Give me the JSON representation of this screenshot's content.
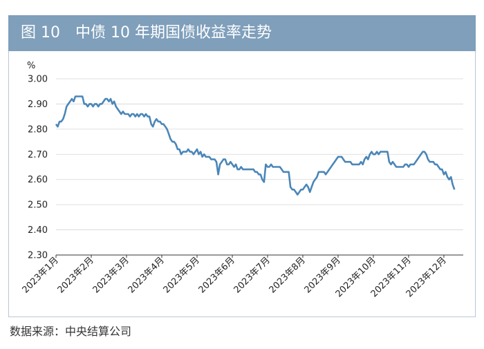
{
  "header": {
    "title": "图 10　中债 10 年期国债收益率走势",
    "background_color": "#7f9fbb"
  },
  "source": "数据来源：中央结算公司",
  "chart_data": {
    "type": "line",
    "title": "图 10　中债 10 年期国债收益率走势",
    "ylabel": "%",
    "ylim": [
      2.3,
      3.0
    ],
    "yticks": [
      "3.00",
      "2.90",
      "2.80",
      "2.70",
      "2.60",
      "2.50",
      "2.40",
      "2.30"
    ],
    "grid": true,
    "line_color": "#4a86b8",
    "xlabels": [
      "2023年1月",
      "2023年2月",
      "2023年3月",
      "2023年4月",
      "2023年5月",
      "2023年6月",
      "2023年7月",
      "2023年8月",
      "2023年9月",
      "2023年10月",
      "2023年11月",
      "2023年12月"
    ],
    "series": [
      {
        "name": "",
        "x": [
          0,
          0.05,
          0.1,
          0.15,
          0.2,
          0.25,
          0.3,
          0.35,
          0.4,
          0.45,
          0.5,
          0.55,
          0.6,
          0.65,
          0.7,
          0.75,
          0.8,
          0.85,
          0.9,
          0.95,
          1.0,
          1.05,
          1.1,
          1.15,
          1.2,
          1.25,
          1.3,
          1.35,
          1.4,
          1.45,
          1.5,
          1.55,
          1.6,
          1.65,
          1.7,
          1.75,
          1.8,
          1.85,
          1.9,
          1.95,
          2.0,
          2.05,
          2.1,
          2.15,
          2.2,
          2.25,
          2.3,
          2.35,
          2.4,
          2.45,
          2.5,
          2.55,
          2.6,
          2.65,
          2.7,
          2.75,
          2.8,
          2.85,
          2.9,
          2.95,
          3.0,
          3.05,
          3.1,
          3.15,
          3.2,
          3.25,
          3.3,
          3.35,
          3.4,
          3.45,
          3.5,
          3.55,
          3.6,
          3.65,
          3.7,
          3.75,
          3.8,
          3.85,
          3.9,
          3.95,
          4.0,
          4.05,
          4.1,
          4.15,
          4.2,
          4.25,
          4.3,
          4.35,
          4.4,
          4.45,
          4.5,
          4.55,
          4.6,
          4.65,
          4.7,
          4.75,
          4.8,
          4.85,
          4.9,
          4.95,
          5.0,
          5.05,
          5.1,
          5.15,
          5.2,
          5.25,
          5.3,
          5.35,
          5.4,
          5.45,
          5.5,
          5.55,
          5.6,
          5.65,
          5.7,
          5.75,
          5.8,
          5.85,
          5.9,
          5.95,
          6.0,
          6.05,
          6.1,
          6.15,
          6.2,
          6.25,
          6.3,
          6.35,
          6.4,
          6.45,
          6.5,
          6.55,
          6.6,
          6.65,
          6.7,
          6.75,
          6.8,
          6.85,
          6.9,
          6.95,
          7.0,
          7.05,
          7.1,
          7.15,
          7.2,
          7.25,
          7.3,
          7.35,
          7.4,
          7.45,
          7.5,
          7.55,
          7.6,
          7.65,
          7.7,
          7.75,
          7.8,
          7.85,
          7.9,
          7.95,
          8.0,
          8.05,
          8.1,
          8.15,
          8.2,
          8.25,
          8.3,
          8.35,
          8.4,
          8.45,
          8.5,
          8.55,
          8.6,
          8.65,
          8.7,
          8.75,
          8.8,
          8.85,
          8.9,
          8.95,
          9.0,
          9.05,
          9.1,
          9.15,
          9.2,
          9.25,
          9.3,
          9.35,
          9.4,
          9.45,
          9.5,
          9.55,
          9.6,
          9.65,
          9.7,
          9.75,
          9.8,
          9.85,
          9.9,
          9.95,
          10.0,
          10.05,
          10.1,
          10.15,
          10.2,
          10.25,
          10.3,
          10.35,
          10.4,
          10.45,
          10.5,
          10.55,
          10.6,
          10.65,
          10.7,
          10.75,
          10.8,
          10.85,
          10.9,
          10.95,
          11.0,
          11.05,
          11.1,
          11.15,
          11.2,
          11.25,
          11.3
        ],
        "y": [
          2.82,
          2.81,
          2.83,
          2.83,
          2.84,
          2.86,
          2.89,
          2.9,
          2.91,
          2.92,
          2.91,
          2.93,
          2.93,
          2.93,
          2.93,
          2.93,
          2.9,
          2.9,
          2.89,
          2.9,
          2.9,
          2.89,
          2.9,
          2.9,
          2.89,
          2.9,
          2.9,
          2.91,
          2.92,
          2.92,
          2.91,
          2.92,
          2.9,
          2.91,
          2.89,
          2.88,
          2.87,
          2.86,
          2.87,
          2.86,
          2.86,
          2.86,
          2.85,
          2.86,
          2.86,
          2.85,
          2.86,
          2.85,
          2.86,
          2.86,
          2.85,
          2.86,
          2.85,
          2.85,
          2.82,
          2.81,
          2.83,
          2.84,
          2.83,
          2.83,
          2.82,
          2.82,
          2.81,
          2.8,
          2.78,
          2.76,
          2.75,
          2.75,
          2.74,
          2.72,
          2.72,
          2.7,
          2.71,
          2.71,
          2.71,
          2.72,
          2.71,
          2.71,
          2.7,
          2.71,
          2.72,
          2.7,
          2.71,
          2.69,
          2.7,
          2.69,
          2.69,
          2.69,
          2.68,
          2.68,
          2.68,
          2.67,
          2.62,
          2.66,
          2.67,
          2.68,
          2.68,
          2.66,
          2.66,
          2.67,
          2.66,
          2.65,
          2.66,
          2.64,
          2.64,
          2.65,
          2.64,
          2.64,
          2.64,
          2.64,
          2.64,
          2.64,
          2.64,
          2.63,
          2.63,
          2.62,
          2.62,
          2.6,
          2.59,
          2.66,
          2.65,
          2.65,
          2.66,
          2.65,
          2.65,
          2.65,
          2.65,
          2.65,
          2.64,
          2.63,
          2.63,
          2.63,
          2.63,
          2.57,
          2.56,
          2.56,
          2.55,
          2.54,
          2.55,
          2.56,
          2.56,
          2.57,
          2.58,
          2.57,
          2.55,
          2.57,
          2.59,
          2.6,
          2.61,
          2.63,
          2.63,
          2.63,
          2.63,
          2.62,
          2.63,
          2.64,
          2.65,
          2.66,
          2.67,
          2.68,
          2.69,
          2.69,
          2.69,
          2.68,
          2.67,
          2.67,
          2.67,
          2.67,
          2.66,
          2.66,
          2.66,
          2.66,
          2.66,
          2.67,
          2.66,
          2.68,
          2.69,
          2.68,
          2.7,
          2.71,
          2.7,
          2.7,
          2.71,
          2.7,
          2.71,
          2.71,
          2.71,
          2.71,
          2.71,
          2.67,
          2.66,
          2.67,
          2.66,
          2.65,
          2.65,
          2.65,
          2.65,
          2.65,
          2.66,
          2.66,
          2.65,
          2.66,
          2.66,
          2.66,
          2.67,
          2.68,
          2.69,
          2.7,
          2.71,
          2.71,
          2.7,
          2.68,
          2.67,
          2.67,
          2.67,
          2.66,
          2.66,
          2.65,
          2.64,
          2.64,
          2.62,
          2.63,
          2.61,
          2.6,
          2.61,
          2.58,
          2.56
        ]
      }
    ]
  }
}
